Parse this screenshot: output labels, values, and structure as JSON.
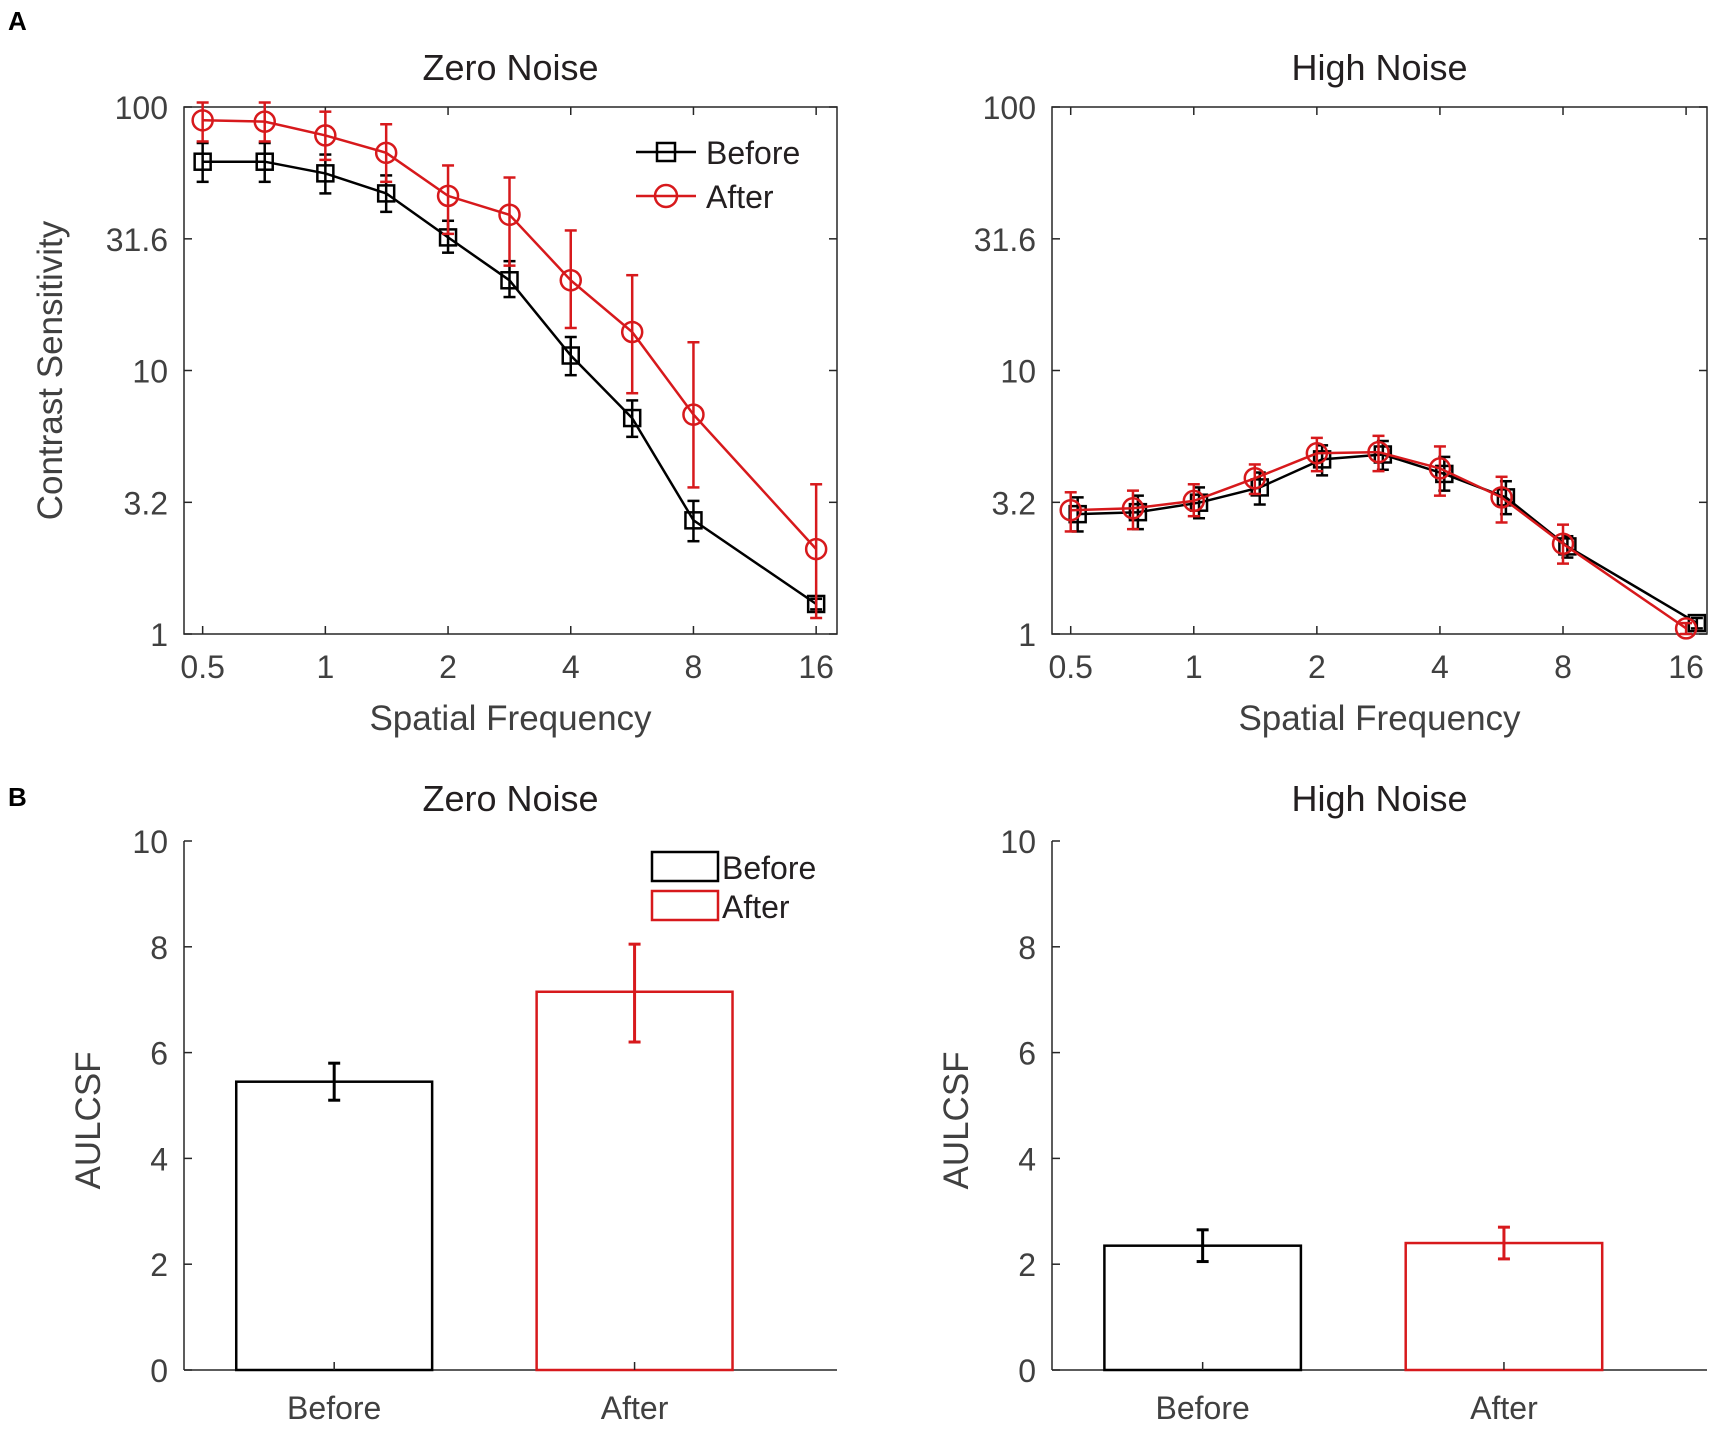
{
  "panel_labels": [
    "A",
    "B"
  ],
  "colors": {
    "before": "#000000",
    "after": "#d7191c",
    "axis": "#404040"
  },
  "legend": {
    "before": "Before",
    "after": "After"
  },
  "chart_data": [
    {
      "id": "csf_zero",
      "type": "line",
      "title": "Zero Noise",
      "xlabel": "Spatial Frequency",
      "ylabel": "Contrast Sensitivity",
      "xscale": "log2",
      "yscale": "log10",
      "xlim": [
        0.45,
        18
      ],
      "ylim": [
        1,
        100
      ],
      "xticks": [
        0.5,
        1,
        2,
        4,
        8,
        16
      ],
      "xtick_labels": [
        "0.5",
        "1",
        "2",
        "4",
        "8",
        "16"
      ],
      "yticks": [
        1,
        3.16,
        10,
        31.6,
        100
      ],
      "ytick_labels": [
        "1",
        "3.2",
        "10",
        "31.6",
        "100"
      ],
      "legend_position": "top-right",
      "x": [
        0.5,
        0.71,
        1,
        1.41,
        2,
        2.83,
        4,
        5.66,
        8,
        16
      ],
      "series": [
        {
          "name": "Before",
          "values": [
            62,
            62,
            56,
            47,
            32,
            22,
            11.4,
            6.6,
            2.7,
            1.3
          ],
          "err_low": [
            52,
            52,
            47,
            40,
            28,
            19,
            9.6,
            5.6,
            2.25,
            1.24
          ],
          "err_high": [
            73,
            73,
            66,
            55,
            37,
            26,
            13.4,
            7.7,
            3.2,
            1.36
          ]
        },
        {
          "name": "After",
          "values": [
            89,
            88,
            78,
            67,
            46,
            39,
            22,
            14,
            6.8,
            2.1
          ],
          "err_low": [
            74,
            74,
            63,
            52,
            33,
            25,
            14.5,
            8.2,
            3.6,
            1.15
          ],
          "err_high": [
            104,
            104,
            96,
            86,
            60,
            54,
            34,
            23,
            12.8,
            3.7
          ]
        }
      ]
    },
    {
      "id": "csf_high",
      "type": "line",
      "title": "High Noise",
      "xlabel": "Spatial Frequency",
      "ylabel": "",
      "xscale": "log2",
      "yscale": "log10",
      "xlim": [
        0.45,
        18
      ],
      "ylim": [
        1,
        100
      ],
      "xticks": [
        0.5,
        1,
        2,
        4,
        8,
        16
      ],
      "xtick_labels": [
        "0.5",
        "1",
        "2",
        "4",
        "8",
        "16"
      ],
      "yticks": [
        1,
        3.16,
        10,
        31.6,
        100
      ],
      "ytick_labels": [
        "1",
        "3.2",
        "10",
        "31.6",
        "100"
      ],
      "x_before": [
        0.52,
        0.73,
        1.03,
        1.45,
        2.06,
        2.9,
        4.1,
        5.8,
        8.2,
        17.0
      ],
      "x_after": [
        0.5,
        0.71,
        1,
        1.41,
        2,
        2.83,
        4,
        5.66,
        8,
        16
      ],
      "series": [
        {
          "name": "Before",
          "values": [
            2.85,
            2.9,
            3.15,
            3.6,
            4.6,
            4.8,
            4.05,
            3.3,
            2.15,
            1.1
          ],
          "err_low": [
            2.45,
            2.5,
            2.75,
            3.1,
            4.0,
            4.2,
            3.5,
            2.85,
            1.95,
            1.05
          ],
          "err_high": [
            3.3,
            3.35,
            3.6,
            4.1,
            5.2,
            5.4,
            4.7,
            3.8,
            2.35,
            1.15
          ]
        },
        {
          "name": "After",
          "values": [
            2.95,
            3.0,
            3.2,
            3.9,
            4.85,
            4.9,
            4.25,
            3.3,
            2.2,
            1.05
          ],
          "err_low": [
            2.45,
            2.5,
            2.8,
            3.4,
            4.15,
            4.15,
            3.35,
            2.65,
            1.85,
            1.0
          ],
          "err_high": [
            3.45,
            3.5,
            3.7,
            4.4,
            5.55,
            5.65,
            5.15,
            3.95,
            2.6,
            1.1
          ]
        }
      ]
    },
    {
      "id": "aulcsf_zero",
      "type": "bar",
      "title": "Zero Noise",
      "xlabel": "",
      "ylabel": "AULCSF",
      "ylim": [
        0,
        10
      ],
      "yticks": [
        0,
        2,
        4,
        6,
        8,
        10
      ],
      "ytick_labels": [
        "0",
        "2",
        "4",
        "6",
        "8",
        "10"
      ],
      "categories": [
        "Before",
        "After"
      ],
      "values": [
        5.45,
        7.15
      ],
      "err_low": [
        5.1,
        6.2
      ],
      "err_high": [
        5.8,
        8.05
      ],
      "legend_position": "top-right"
    },
    {
      "id": "aulcsf_high",
      "type": "bar",
      "title": "High Noise",
      "xlabel": "",
      "ylabel": "AULCSF",
      "ylim": [
        0,
        10
      ],
      "yticks": [
        0,
        2,
        4,
        6,
        8,
        10
      ],
      "ytick_labels": [
        "0",
        "2",
        "4",
        "6",
        "8",
        "10"
      ],
      "categories": [
        "Before",
        "After"
      ],
      "values": [
        2.35,
        2.4
      ],
      "err_low": [
        2.05,
        2.1
      ],
      "err_high": [
        2.65,
        2.7
      ]
    }
  ]
}
